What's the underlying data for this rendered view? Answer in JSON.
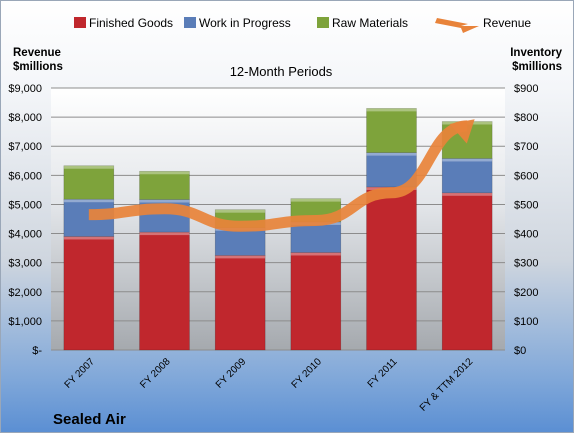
{
  "chart_data": {
    "type": "bar",
    "stacked": true,
    "title": "12-Month Periods",
    "company": "Sealed Air",
    "left_axis_label": [
      "Revenue",
      "$millions"
    ],
    "right_axis_label": [
      "Inventory",
      "$millions"
    ],
    "categories": [
      "FY 2007",
      "FY 2008",
      "FY 2009",
      "FY 2010",
      "FY 2011",
      "FY & TTM 2012"
    ],
    "series": [
      {
        "name": "Finished Goods",
        "type": "bar",
        "axis": "right",
        "color": "#c0272d",
        "values": [
          390,
          405,
          325,
          335,
          560,
          540
        ]
      },
      {
        "name": "Work in Progress",
        "type": "bar",
        "axis": "right",
        "color": "#5a7db8",
        "values": [
          128,
          112,
          95,
          105,
          118,
          118
        ]
      },
      {
        "name": "Raw Materials",
        "type": "bar",
        "axis": "right",
        "color": "#7ea33b",
        "values": [
          115,
          97,
          62,
          80,
          152,
          127
        ]
      },
      {
        "name": "Revenue",
        "type": "line",
        "axis": "left",
        "color": "#e8833a",
        "values": [
          4650,
          4850,
          4250,
          4450,
          5400,
          7700
        ]
      }
    ],
    "left_axis": {
      "min": 0,
      "max": 9000,
      "ticks": [
        "$-",
        "$1,000",
        "$2,000",
        "$3,000",
        "$4,000",
        "$5,000",
        "$6,000",
        "$7,000",
        "$8,000",
        "$9,000"
      ]
    },
    "right_axis": {
      "min": 0,
      "max": 900,
      "ticks": [
        "$0",
        "$100",
        "$200",
        "$300",
        "$400",
        "$500",
        "$600",
        "$700",
        "$800",
        "$900"
      ]
    },
    "grid": true,
    "legend_position": "top"
  }
}
